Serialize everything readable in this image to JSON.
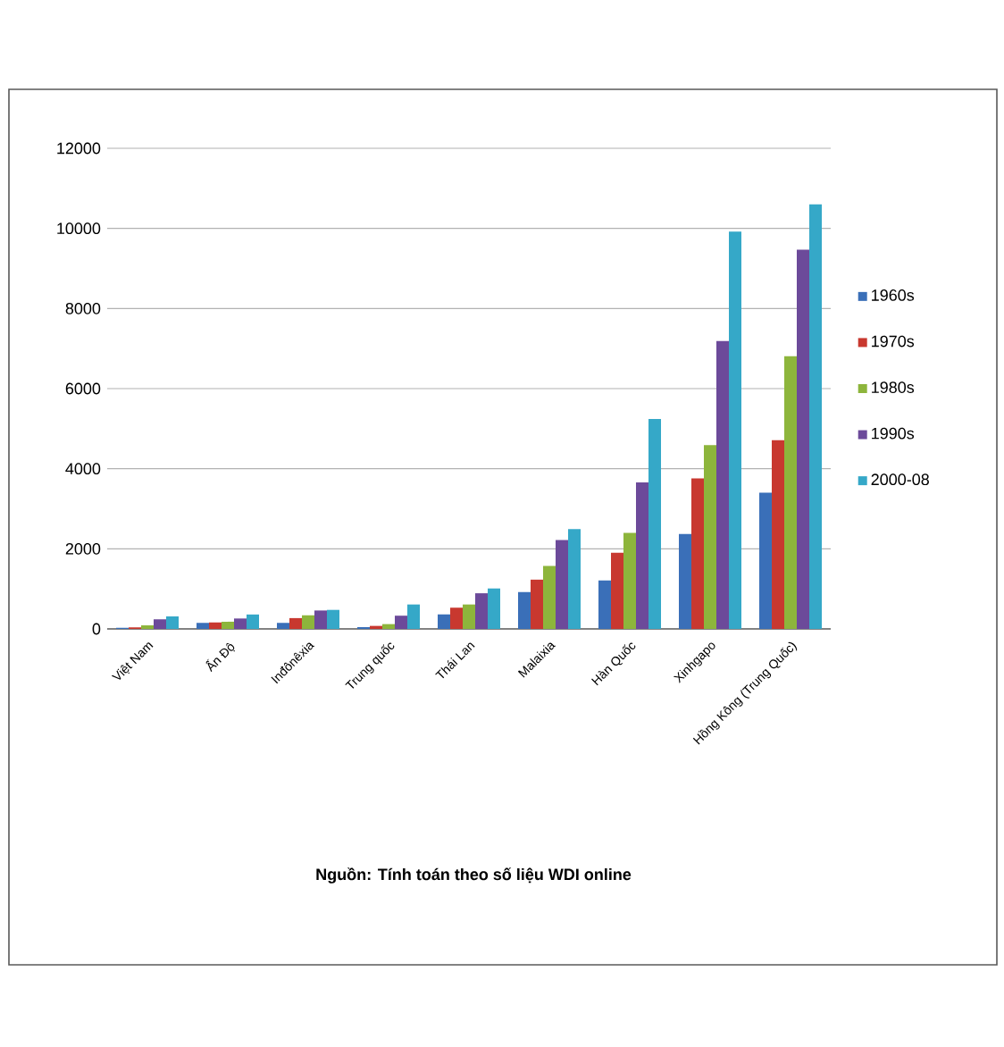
{
  "chart_data": {
    "type": "bar",
    "categories": [
      "Việt Nam",
      "Ấn Độ",
      "Inđônêxia",
      "Trung quốc",
      "Thái Lan",
      "Malaixia",
      "Hàn Quốc",
      "Xinhgapo",
      "Hồng Kông (Trung Quốc)"
    ],
    "series": [
      {
        "name": "1960s",
        "color": "#3a6fb8",
        "values": [
          30,
          150,
          150,
          45,
          360,
          920,
          1210,
          2370,
          3400
        ]
      },
      {
        "name": "1970s",
        "color": "#c8382f",
        "values": [
          40,
          160,
          270,
          75,
          530,
          1230,
          1900,
          3760,
          4710
        ]
      },
      {
        "name": "1980s",
        "color": "#8db53c",
        "values": [
          90,
          180,
          340,
          120,
          610,
          1570,
          2400,
          4590,
          6810
        ]
      },
      {
        "name": "1990s",
        "color": "#6c4a9a",
        "values": [
          240,
          260,
          460,
          330,
          890,
          2220,
          3660,
          7190,
          9470
        ]
      },
      {
        "name": "2000-08",
        "color": "#35a8c8",
        "values": [
          310,
          360,
          475,
          610,
          1010,
          2490,
          5240,
          9920,
          10600
        ]
      }
    ],
    "ylim": [
      0,
      12000
    ],
    "yticks": [
      0,
      2000,
      4000,
      6000,
      8000,
      10000,
      12000
    ],
    "grid": "y",
    "legend": "right",
    "annotations": [
      "Nguồn: Tính toán theo số liệu WDI online"
    ]
  }
}
